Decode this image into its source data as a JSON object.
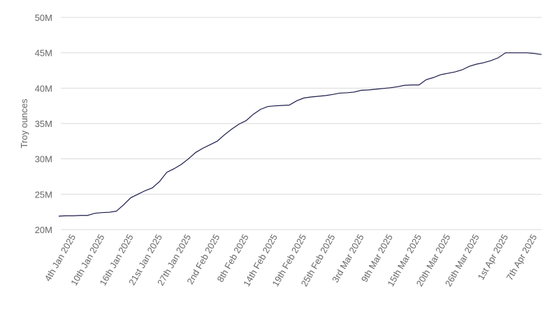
{
  "chart_data": {
    "type": "line",
    "ylabel": "Troy ounces",
    "color": "#1b1a4a",
    "grid": true,
    "categories": [
      null,
      null,
      "4th Jan 2025",
      null,
      null,
      null,
      "10th Jan 2025",
      null,
      null,
      null,
      "16th Jan 2025",
      null,
      null,
      null,
      "21st Jan 2025",
      null,
      null,
      null,
      "27th Jan 2025",
      null,
      null,
      null,
      "2nd Feb 2025",
      null,
      null,
      null,
      "8th Feb 2025",
      null,
      null,
      null,
      "14th Feb 2025",
      null,
      null,
      null,
      "19th Feb 2025",
      null,
      null,
      null,
      "25th Feb 2025",
      null,
      null,
      null,
      "3rd Mar 2025",
      null,
      null,
      null,
      "9th Mar 2025",
      null,
      null,
      null,
      "15th Mar 2025",
      null,
      null,
      null,
      "20th Mar 2025",
      null,
      null,
      null,
      "26th Mar 2025",
      null,
      null,
      null,
      "1st Apr 2025",
      null,
      null,
      null,
      "7th Apr 2025",
      null
    ],
    "values": [
      21900000,
      21950000,
      21950000,
      22000000,
      22000000,
      22300000,
      22400000,
      22450000,
      22600000,
      23500000,
      24500000,
      25000000,
      25500000,
      25900000,
      26800000,
      28100000,
      28600000,
      29200000,
      30000000,
      30900000,
      31500000,
      32000000,
      32500000,
      33400000,
      34200000,
      34900000,
      35400000,
      36300000,
      37000000,
      37400000,
      37500000,
      37550000,
      37600000,
      38200000,
      38600000,
      38750000,
      38850000,
      38950000,
      39100000,
      39300000,
      39350000,
      39450000,
      39700000,
      39750000,
      39850000,
      39950000,
      40050000,
      40200000,
      40400000,
      40450000,
      40450000,
      41200000,
      41500000,
      41900000,
      42100000,
      42300000,
      42600000,
      43100000,
      43400000,
      43600000,
      43900000,
      44300000,
      45000000,
      45000000,
      45000000,
      45000000,
      44900000,
      44750000
    ],
    "ylim": [
      20000000,
      50000000
    ],
    "yticks": [
      {
        "value": 20000000,
        "label": "20M"
      },
      {
        "value": 25000000,
        "label": "25M"
      },
      {
        "value": 30000000,
        "label": "30M"
      },
      {
        "value": 35000000,
        "label": "35M"
      },
      {
        "value": 40000000,
        "label": "40M"
      },
      {
        "value": 45000000,
        "label": "45M"
      },
      {
        "value": 50000000,
        "label": "50M"
      }
    ]
  }
}
